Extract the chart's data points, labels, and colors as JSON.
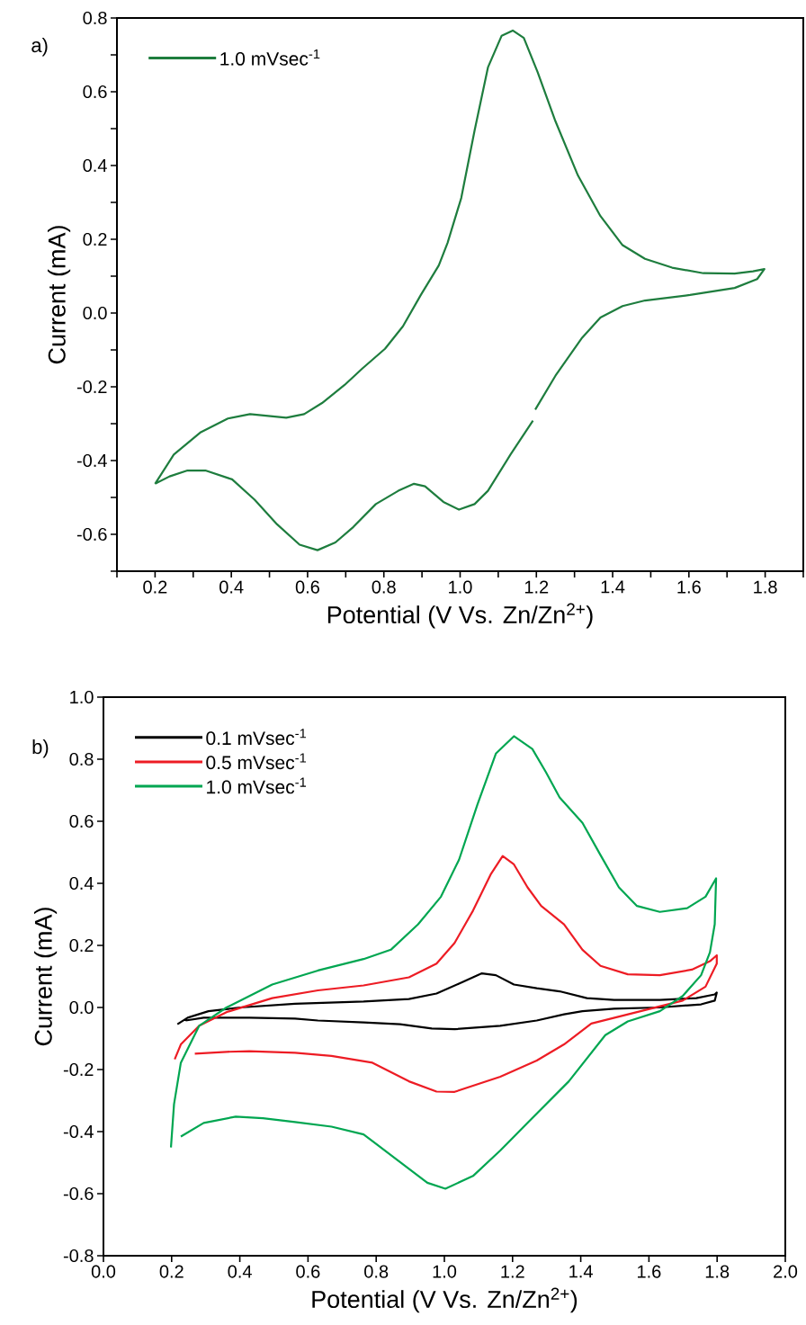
{
  "chart_data": [
    {
      "type": "line",
      "xlabel": "Potential (V Vs. Zn/Zn$^{2+}$)",
      "ylabel": "Current (mA)",
      "annotations": [
        "a)"
      ],
      "legend": "top left",
      "xlim": [
        0.1,
        1.9
      ],
      "ylim": [
        -0.7,
        0.8
      ],
      "xticks": [
        {
          "value": 0.1,
          "label": null
        },
        0.2,
        {
          "value": 0.3,
          "label": null
        },
        0.4,
        {
          "value": 0.5,
          "label": null
        },
        0.6,
        {
          "value": 0.7,
          "label": null
        },
        0.8,
        {
          "value": 0.9,
          "label": null
        },
        {
          "value": 1.0,
          "label": "1.0"
        },
        {
          "value": 1.1,
          "label": null
        },
        1.2,
        {
          "value": 1.3,
          "label": null
        },
        1.4,
        {
          "value": 1.5,
          "label": null
        },
        1.6,
        {
          "value": 1.7,
          "label": null
        },
        1.8,
        {
          "value": 1.9,
          "label": null
        }
      ],
      "yticks": [
        {
          "value": -0.7,
          "label": null
        },
        -0.6,
        {
          "value": -0.5,
          "label": null
        },
        -0.4,
        {
          "value": -0.3,
          "label": null
        },
        -0.2,
        {
          "value": -0.1,
          "label": null
        },
        {
          "value": 0.0,
          "label": "0.0"
        },
        {
          "value": 0.1,
          "label": null
        },
        0.2,
        {
          "value": 0.3,
          "label": null
        },
        0.4,
        {
          "value": 0.5,
          "label": null
        },
        0.6,
        {
          "value": 0.7,
          "label": null
        },
        0.8
      ],
      "series": [
        {
          "name": "1.0 mVsec$^{-1}$",
          "color": "#1e7d3e",
          "x": [
            0.2,
            0.249,
            0.32,
            0.391,
            0.449,
            0.544,
            0.591,
            0.638,
            0.697,
            0.744,
            0.803,
            0.85,
            0.897,
            0.944,
            0.967,
            1.003,
            1.038,
            1.073,
            1.109,
            1.138,
            1.167,
            1.203,
            1.25,
            1.309,
            1.368,
            1.426,
            1.485,
            1.556,
            1.638,
            1.72,
            1.768,
            1.798,
            1.779,
            1.72,
            1.603,
            1.485,
            1.426,
            1.368,
            1.32,
            1.25,
            1.197,
            1.194,
            1.191,
            1.132,
            1.073,
            1.038,
            0.997,
            0.956,
            0.908,
            0.879,
            0.838,
            0.779,
            0.72,
            0.673,
            0.626,
            0.579,
            0.52,
            0.461,
            0.402,
            0.332,
            0.285,
            0.238,
            0.2
          ],
          "values": [
            -0.463,
            -0.384,
            -0.323,
            -0.286,
            -0.274,
            -0.284,
            -0.274,
            -0.244,
            -0.195,
            -0.15,
            -0.097,
            -0.036,
            0.049,
            0.129,
            0.19,
            0.312,
            0.495,
            0.666,
            0.752,
            0.766,
            0.746,
            0.654,
            0.52,
            0.373,
            0.263,
            0.184,
            0.147,
            0.123,
            0.108,
            0.107,
            0.113,
            0.119,
            0.092,
            0.068,
            0.049,
            0.034,
            0.019,
            -0.012,
            -0.067,
            -0.17,
            -0.262,
            null,
            -0.292,
            -0.384,
            -0.482,
            -0.518,
            -0.533,
            -0.512,
            -0.47,
            -0.463,
            -0.482,
            -0.518,
            -0.58,
            -0.622,
            -0.643,
            -0.628,
            -0.573,
            -0.506,
            -0.451,
            -0.427,
            -0.427,
            -0.443,
            -0.463
          ]
        }
      ]
    },
    {
      "type": "line",
      "xlabel": "Potential (V Vs. Zn/Zn$^{2+}$)",
      "ylabel": "Current (mA)",
      "annotations": [
        "b)"
      ],
      "legend": "top left",
      "xlim": [
        0.0,
        2.0
      ],
      "ylim": [
        -0.8,
        1.0
      ],
      "xticks": [
        {
          "value": 0.0,
          "label": "0.0"
        },
        0.2,
        0.4,
        0.6,
        0.8,
        {
          "value": 1.0,
          "label": "1.0"
        },
        1.2,
        1.4,
        1.6,
        1.8,
        {
          "value": 2.0,
          "label": "2.0"
        }
      ],
      "yticks": [
        -0.8,
        -0.6,
        -0.4,
        -0.2,
        {
          "value": 0.0,
          "label": "0.0"
        },
        0.2,
        0.4,
        0.6,
        0.8,
        {
          "value": 1.0,
          "label": "1.0"
        }
      ],
      "series": [
        {
          "name": "0.1 mVsec$^{-1}$",
          "color": "#000000",
          "x": [
            0.217,
            0.247,
            0.308,
            0.401,
            0.562,
            0.763,
            0.896,
            0.977,
            1.043,
            1.11,
            1.151,
            1.204,
            1.271,
            1.338,
            1.418,
            1.498,
            1.632,
            1.739,
            1.793,
            1.799,
            1.793,
            1.753,
            1.632,
            1.498,
            1.405,
            1.351,
            1.271,
            1.164,
            1.03,
            0.963,
            0.87,
            0.763,
            0.629,
            0.562,
            0.428,
            0.294,
            0.241
          ],
          "values": [
            -0.054,
            -0.033,
            -0.012,
            0.0,
            0.012,
            0.019,
            0.027,
            0.045,
            0.077,
            0.11,
            0.104,
            0.074,
            0.062,
            0.052,
            0.03,
            0.024,
            0.024,
            0.03,
            0.042,
            0.048,
            0.022,
            0.01,
            0.0,
            -0.004,
            -0.012,
            -0.022,
            -0.042,
            -0.059,
            -0.07,
            -0.068,
            -0.054,
            -0.048,
            -0.042,
            -0.036,
            -0.033,
            -0.033,
            -0.042
          ]
        },
        {
          "name": "0.5 mVsec$^{-1}$",
          "color": "#ed1c24",
          "x": [
            0.209,
            0.227,
            0.281,
            0.361,
            0.495,
            0.629,
            0.763,
            0.896,
            0.977,
            1.03,
            1.084,
            1.137,
            1.171,
            1.204,
            1.244,
            1.284,
            1.351,
            1.405,
            1.458,
            1.538,
            1.632,
            1.726,
            1.779,
            1.799,
            1.799,
            1.766,
            1.699,
            1.565,
            1.431,
            1.351,
            1.271,
            1.164,
            1.03,
            0.977,
            0.896,
            0.789,
            0.669,
            0.562,
            0.428,
            0.361,
            0.268
          ],
          "values": [
            -0.167,
            -0.119,
            -0.059,
            -0.015,
            0.03,
            0.055,
            0.071,
            0.097,
            0.141,
            0.208,
            0.312,
            0.431,
            0.488,
            0.461,
            0.387,
            0.327,
            0.268,
            0.186,
            0.134,
            0.107,
            0.104,
            0.122,
            0.149,
            0.168,
            0.141,
            0.067,
            0.022,
            -0.015,
            -0.052,
            -0.119,
            -0.171,
            -0.223,
            -0.272,
            -0.271,
            -0.238,
            -0.178,
            -0.156,
            -0.146,
            -0.141,
            -0.143,
            -0.149
          ]
        },
        {
          "name": "1.0 mVsec$^{-1}$",
          "color": "#00a651",
          "x": [
            0.198,
            0.207,
            0.227,
            0.281,
            0.361,
            0.495,
            0.629,
            0.763,
            0.843,
            0.923,
            0.99,
            1.043,
            1.097,
            1.151,
            1.204,
            1.258,
            1.298,
            1.338,
            1.405,
            1.458,
            1.512,
            1.565,
            1.632,
            1.712,
            1.766,
            1.797,
            1.793,
            1.779,
            1.753,
            1.699,
            1.632,
            1.538,
            1.472,
            1.365,
            1.244,
            1.164,
            1.084,
            1.003,
            0.95,
            0.87,
            0.763,
            0.669,
            0.562,
            0.468,
            0.388,
            0.294,
            0.227
          ],
          "values": [
            -0.451,
            -0.312,
            -0.178,
            -0.059,
            0.0,
            0.074,
            0.119,
            0.156,
            0.186,
            0.268,
            0.357,
            0.476,
            0.654,
            0.818,
            0.874,
            0.833,
            0.758,
            0.677,
            0.595,
            0.491,
            0.387,
            0.327,
            0.308,
            0.32,
            0.357,
            0.416,
            0.268,
            0.178,
            0.104,
            0.037,
            -0.012,
            -0.045,
            -0.089,
            -0.238,
            -0.372,
            -0.461,
            -0.543,
            -0.584,
            -0.565,
            -0.498,
            -0.409,
            -0.384,
            -0.369,
            -0.357,
            -0.352,
            -0.372,
            -0.416
          ]
        }
      ]
    }
  ]
}
